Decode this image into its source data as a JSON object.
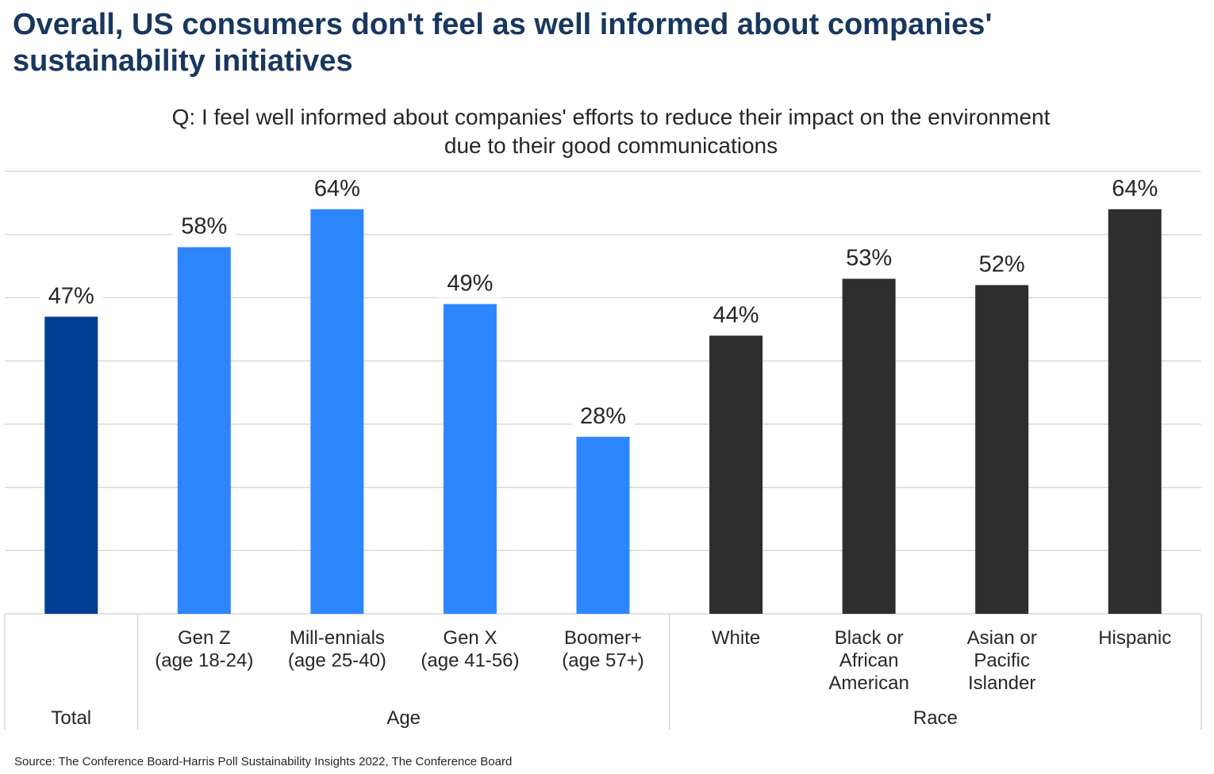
{
  "title": {
    "line1": "Overall, US consumers don't feel as well informed about companies'",
    "line2": "sustainability initiatives"
  },
  "subtitle": {
    "line1": "Q: I feel well informed about companies' efforts to reduce their impact on the environment",
    "line2": "due to their good communications"
  },
  "source": "Source: The Conference Board-Harris Poll Sustainability Insights 2022, The Conference Board",
  "colors": {
    "total": "#003f91",
    "age": "#2e86ff",
    "race": "#2e2e2e",
    "gridline": "#d9d9d9",
    "title": "#17375e",
    "text": "#262626"
  },
  "chart_data": {
    "type": "bar",
    "categories": [
      [
        "Total"
      ],
      [
        "Gen Z",
        "(age 18-24)"
      ],
      [
        "Mill-ennials",
        "(age 25-40)"
      ],
      [
        "Gen X",
        "(age 41-56)"
      ],
      [
        "Boomer+",
        "(age 57+)"
      ],
      [
        "White"
      ],
      [
        "Black or",
        "African",
        "American"
      ],
      [
        "Asian or",
        "Pacific",
        "Islander"
      ],
      [
        "Hispanic"
      ]
    ],
    "values": [
      47,
      58,
      64,
      49,
      28,
      44,
      53,
      52,
      64
    ],
    "value_labels": [
      "47%",
      "58%",
      "64%",
      "49%",
      "28%",
      "44%",
      "53%",
      "52%",
      "64%"
    ],
    "groups": [
      {
        "label": "Total",
        "start": 0,
        "end": 0,
        "color_key": "total"
      },
      {
        "label": "Age",
        "start": 1,
        "end": 4,
        "color_key": "age"
      },
      {
        "label": "Race",
        "start": 5,
        "end": 8,
        "color_key": "race"
      }
    ],
    "ylim": [
      0,
      70
    ],
    "grid": true,
    "y_axis_visible": false,
    "legend": "none"
  }
}
